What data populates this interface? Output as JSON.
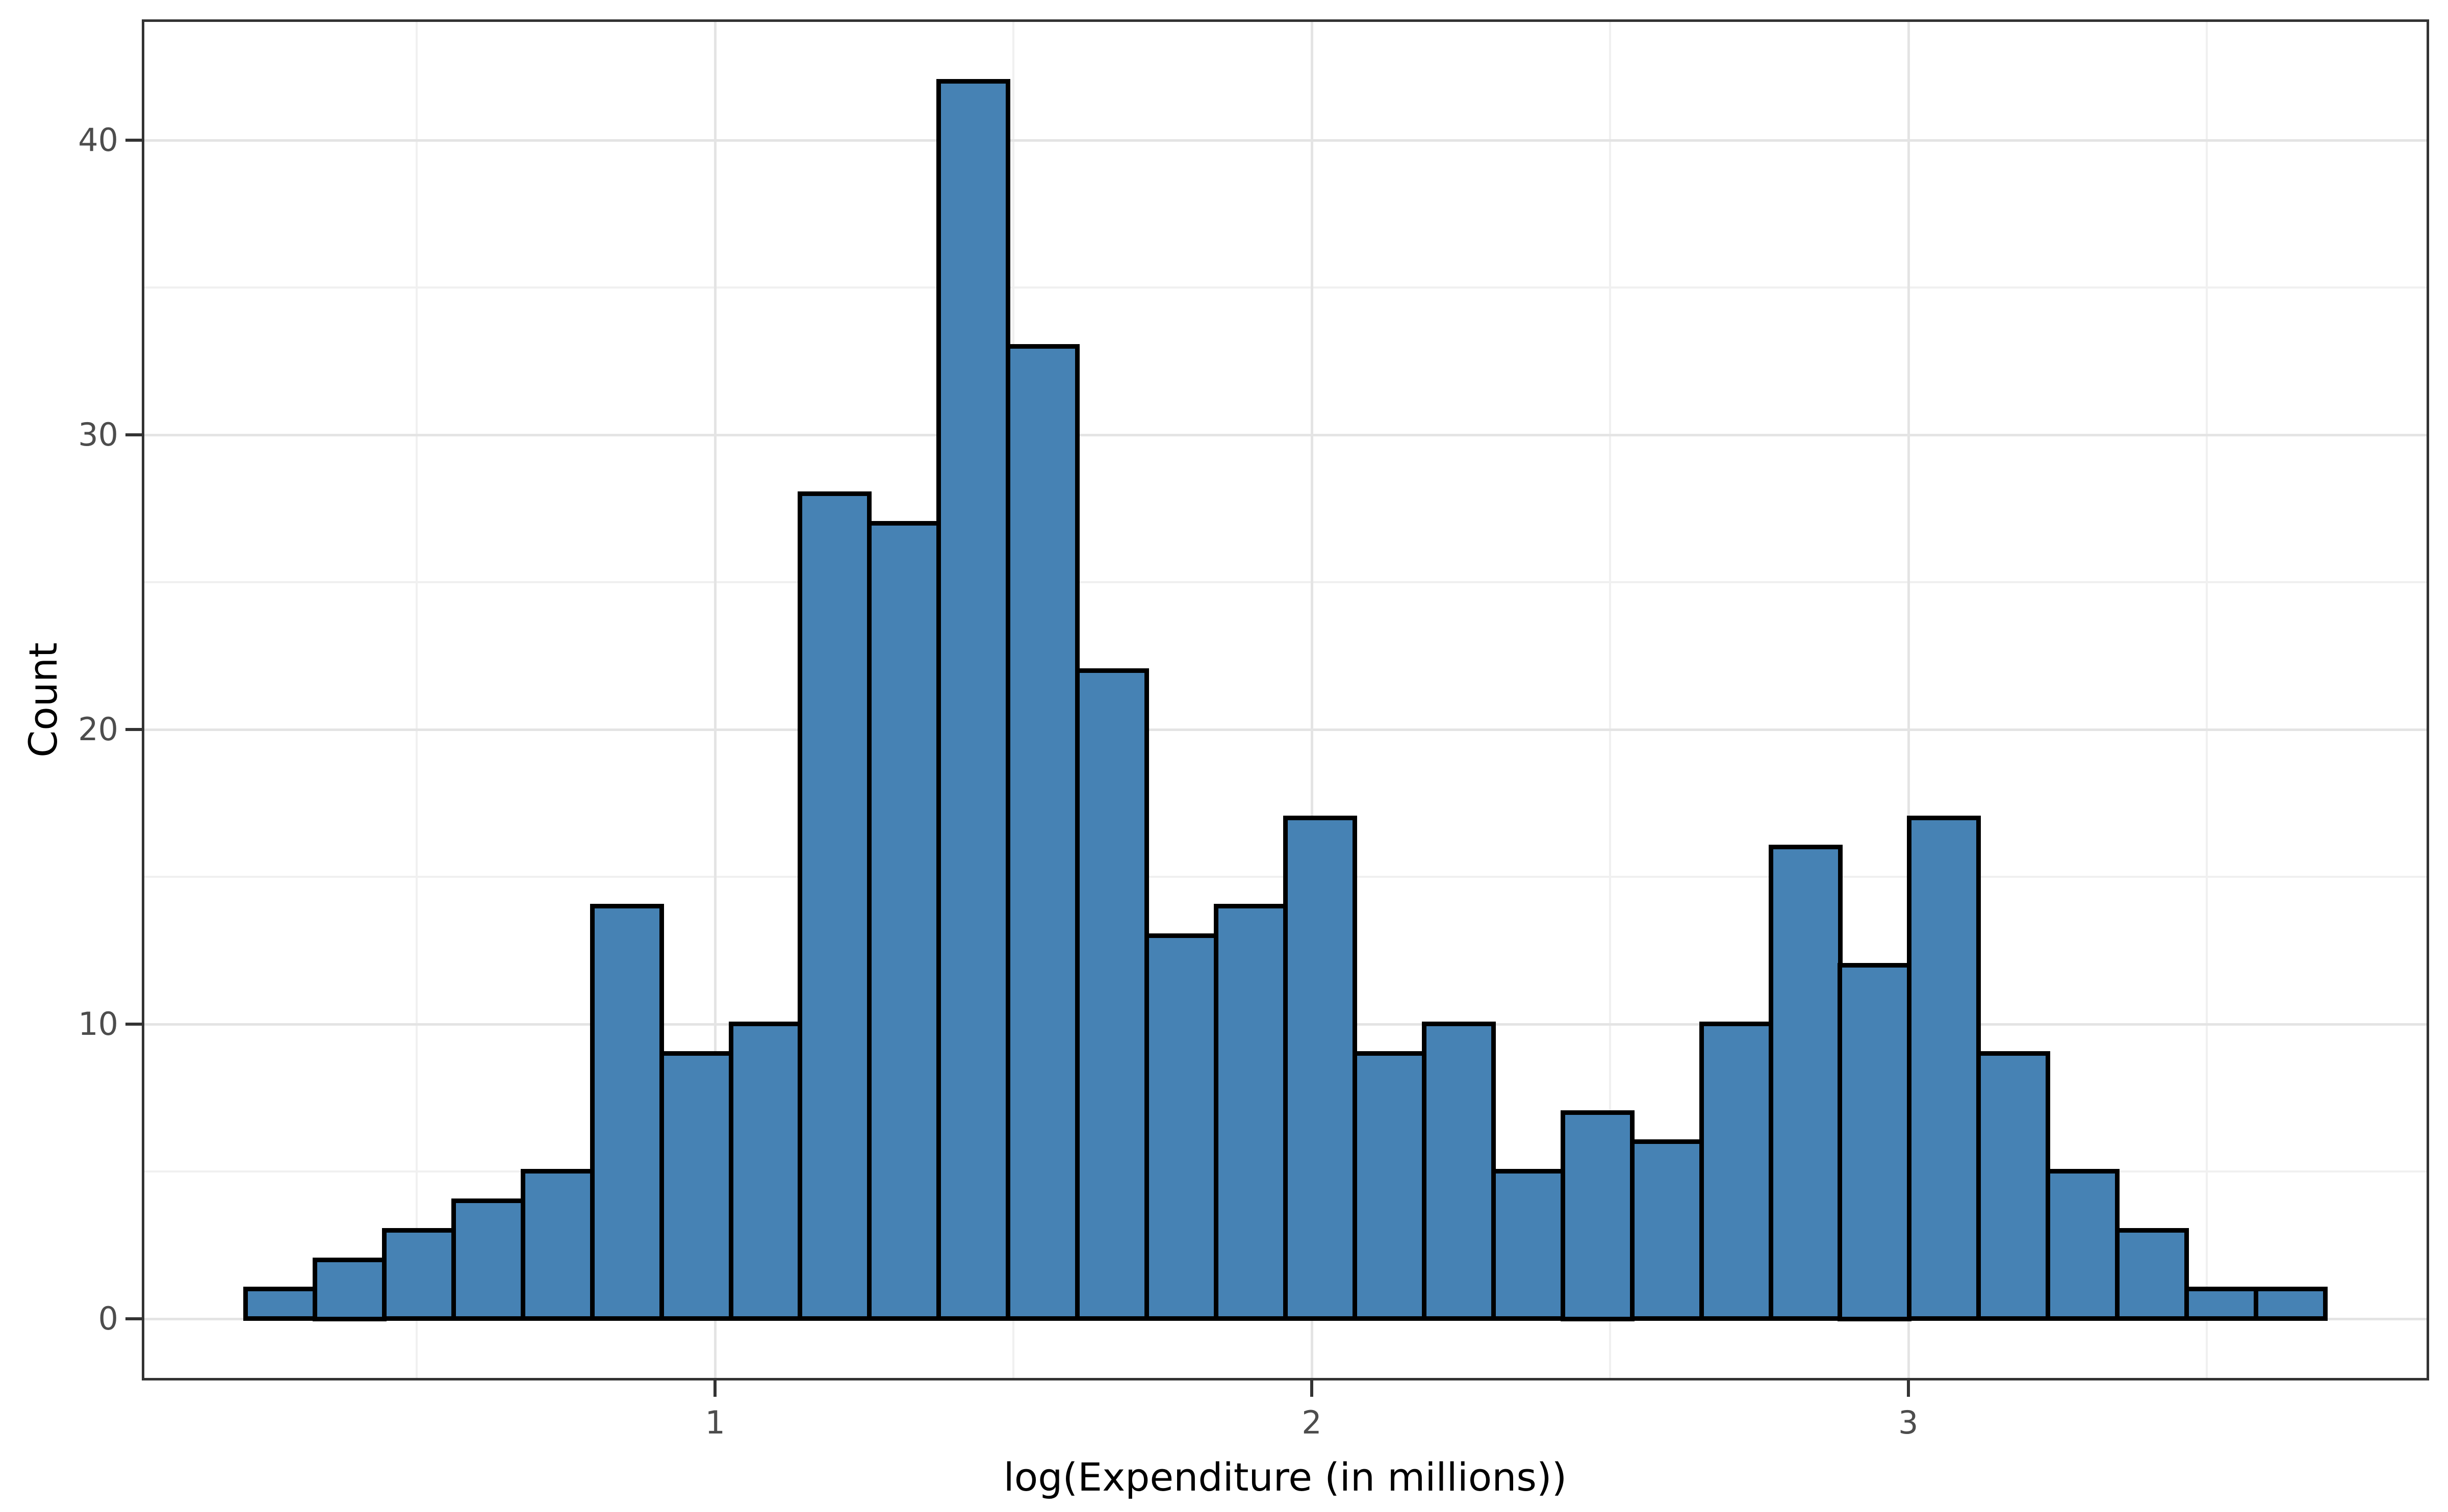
{
  "figure": {
    "background": "#FFFFFF"
  },
  "chart_data": {
    "type": "bar",
    "subtype": "histogram",
    "title": "",
    "xlabel": "log(Expenditure (in millions))",
    "ylabel": "Count",
    "bin_start": 0.213,
    "bin_width": 0.1162,
    "counts": [
      1,
      2,
      3,
      4,
      5,
      14,
      9,
      10,
      28,
      27,
      42,
      33,
      22,
      13,
      14,
      17,
      9,
      10,
      5,
      7,
      6,
      10,
      16,
      12,
      17,
      9,
      5,
      3,
      1,
      1
    ],
    "x_tick_values": [
      1,
      2,
      3
    ],
    "x_tick_labels": [
      "1",
      "2",
      "3"
    ],
    "y_tick_values": [
      0,
      10,
      20,
      30,
      40
    ],
    "y_tick_labels": [
      "0",
      "10",
      "20",
      "30",
      "40"
    ],
    "x_minor_ticks": [
      0.5,
      1.5,
      2.5,
      3.5
    ],
    "y_minor_ticks": [
      5,
      15,
      25,
      35
    ],
    "xlim": [
      0.039,
      3.873
    ],
    "ylim": [
      -2.1,
      44.1
    ],
    "grid": "major+minor",
    "legend": "none",
    "colors": {
      "bar_fill": "#4682B4",
      "bar_stroke": "#000000",
      "grid_major": "#E4E4E4",
      "grid_minor": "#F0F0F0",
      "panel_border": "#333333",
      "tick_mark": "#333333",
      "tick_label": "#4D4D4D",
      "axis_title": "#000000"
    }
  }
}
